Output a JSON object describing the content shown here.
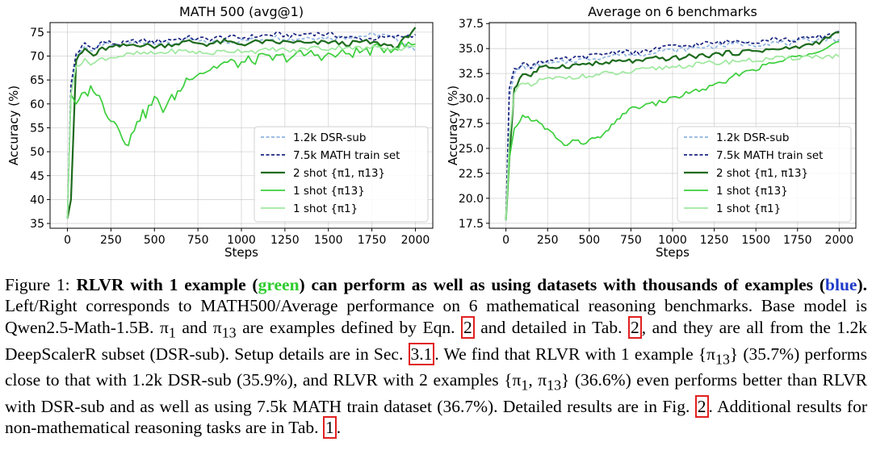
{
  "colors": {
    "dsr_sub": "#8fb3e0",
    "math_7k5": "#1a2480",
    "two_shot": "#1d6b1d",
    "one_shot_pi13": "#3ccf3c",
    "one_shot_pi1": "#9fe89f",
    "caption_green": "#2ecc2e",
    "caption_blue": "#1f3ac8",
    "ref_box": "#e02020"
  },
  "chart_data": [
    {
      "type": "line",
      "title": "MATH 500 (avg@1)",
      "xlabel": "Steps",
      "ylabel": "Accuracy (%)",
      "xlim": [
        -100,
        2100
      ],
      "ylim": [
        34,
        77
      ],
      "x_ticks": [
        0,
        250,
        500,
        750,
        1000,
        1250,
        1500,
        1750,
        2000
      ],
      "y_ticks": [
        35,
        40,
        45,
        50,
        55,
        60,
        65,
        70,
        75
      ],
      "grid": true,
      "legend_position": "lower-right",
      "series": [
        {
          "name": "1.2k DSR-sub",
          "style": "dashed",
          "x": [
            0,
            20,
            50,
            100,
            150,
            200,
            300,
            400,
            500,
            600,
            700,
            800,
            900,
            1000,
            1100,
            1200,
            1300,
            1400,
            1500,
            1600,
            1700,
            1800,
            1900,
            2000
          ],
          "y": [
            36,
            63,
            70,
            72,
            71,
            72.5,
            72,
            73,
            73,
            72.5,
            73.5,
            72.8,
            73,
            73.2,
            73.5,
            74,
            73.5,
            74,
            73.8,
            74,
            74.2,
            74.5,
            73.5,
            71
          ]
        },
        {
          "name": "7.5k MATH train set",
          "style": "dashed",
          "x": [
            0,
            20,
            50,
            100,
            150,
            200,
            300,
            400,
            500,
            600,
            700,
            800,
            900,
            1000,
            1100,
            1200,
            1300,
            1400,
            1500,
            1600,
            1700,
            1800,
            1900,
            2000
          ],
          "y": [
            36,
            64,
            70.5,
            72.5,
            71.5,
            73,
            72.5,
            73.2,
            73,
            73.5,
            73.8,
            73.5,
            74,
            73.8,
            74.2,
            74.5,
            74.2,
            74.8,
            74.5,
            74,
            73.5,
            73.8,
            74,
            74.5
          ]
        },
        {
          "name": "2 shot {π1, π13}",
          "style": "solid",
          "x": [
            0,
            20,
            50,
            100,
            150,
            200,
            300,
            400,
            500,
            600,
            700,
            800,
            900,
            1000,
            1100,
            1200,
            1300,
            1400,
            1500,
            1600,
            1700,
            1800,
            1900,
            2000
          ],
          "y": [
            36,
            40,
            69,
            71.5,
            70,
            71.5,
            72,
            72.5,
            72,
            72.5,
            73,
            72.5,
            73,
            72.5,
            73,
            72.8,
            73,
            72.5,
            73,
            72.5,
            73,
            72.5,
            72,
            76
          ]
        },
        {
          "name": "1 shot {π13}",
          "style": "solid",
          "x": [
            0,
            20,
            50,
            100,
            150,
            200,
            250,
            300,
            350,
            400,
            450,
            500,
            550,
            600,
            650,
            700,
            800,
            900,
            1000,
            1100,
            1200,
            1300,
            1400,
            1500,
            1600,
            1700,
            1800,
            1900,
            2000
          ],
          "y": [
            36,
            62,
            60,
            62,
            63.5,
            60,
            57,
            55,
            51,
            57,
            58,
            61,
            59,
            61,
            63,
            66,
            67,
            68.5,
            68.5,
            69.5,
            69.5,
            70,
            70.5,
            70,
            70.5,
            71,
            71.5,
            72,
            72.5
          ]
        },
        {
          "name": "1 shot {π1}",
          "style": "solid",
          "x": [
            0,
            20,
            50,
            100,
            150,
            200,
            300,
            400,
            500,
            600,
            700,
            800,
            900,
            1000,
            1100,
            1200,
            1300,
            1400,
            1500,
            1600,
            1700,
            1800,
            1900,
            2000
          ],
          "y": [
            36,
            62,
            68,
            69,
            68.5,
            69.5,
            70,
            70.5,
            70.5,
            71,
            71,
            70.5,
            71,
            71.2,
            71,
            71.5,
            71,
            71.8,
            71.5,
            72,
            71.5,
            72,
            71.5,
            72
          ]
        }
      ]
    },
    {
      "type": "line",
      "title": "Average on 6 benchmarks",
      "xlabel": "Steps",
      "ylabel": "Accuracy (%)",
      "xlim": [
        -100,
        2100
      ],
      "ylim": [
        17,
        37.6
      ],
      "x_ticks": [
        0,
        250,
        500,
        750,
        1000,
        1250,
        1500,
        1750,
        2000
      ],
      "y_ticks": [
        17.5,
        20.0,
        22.5,
        25.0,
        27.5,
        30.0,
        32.5,
        35.0,
        37.5
      ],
      "grid": true,
      "legend_position": "lower-right",
      "series": [
        {
          "name": "1.2k DSR-sub",
          "style": "dashed",
          "x": [
            0,
            20,
            50,
            100,
            150,
            200,
            300,
            400,
            500,
            600,
            700,
            800,
            900,
            1000,
            1100,
            1200,
            1300,
            1400,
            1500,
            1600,
            1700,
            1800,
            1900,
            2000
          ],
          "y": [
            17.8,
            30,
            32.5,
            33.3,
            33,
            33.5,
            33.5,
            33.8,
            34,
            34.2,
            34.5,
            34.3,
            34.8,
            34.8,
            35,
            35.2,
            35.3,
            35.5,
            35.4,
            35.6,
            35.5,
            35.8,
            36,
            35.9
          ]
        },
        {
          "name": "7.5k MATH train set",
          "style": "dashed",
          "x": [
            0,
            20,
            50,
            100,
            150,
            200,
            300,
            400,
            500,
            600,
            700,
            800,
            900,
            1000,
            1100,
            1200,
            1300,
            1400,
            1500,
            1600,
            1700,
            1800,
            1900,
            2000
          ],
          "y": [
            17.8,
            31,
            33,
            33.5,
            33.2,
            33.8,
            33.8,
            34,
            34.2,
            34.5,
            34.8,
            34.5,
            35,
            35.2,
            35.3,
            35.5,
            35.6,
            35.8,
            35.7,
            36,
            35.8,
            36,
            36.2,
            36.7
          ]
        },
        {
          "name": "2 shot {π1, π13}",
          "style": "solid",
          "x": [
            0,
            20,
            50,
            100,
            150,
            200,
            300,
            400,
            500,
            600,
            700,
            800,
            900,
            1000,
            1100,
            1200,
            1300,
            1400,
            1500,
            1600,
            1700,
            1800,
            1900,
            2000
          ],
          "y": [
            17.8,
            24,
            31,
            32.5,
            32.3,
            33,
            33.2,
            33.3,
            33.5,
            33.5,
            33.8,
            33.7,
            34,
            34,
            34.2,
            34.3,
            34.5,
            34.6,
            34.8,
            34.9,
            35,
            35.3,
            35.8,
            36.6
          ]
        },
        {
          "name": "1 shot {π13}",
          "style": "solid",
          "x": [
            0,
            20,
            50,
            100,
            150,
            200,
            250,
            300,
            350,
            400,
            450,
            500,
            550,
            600,
            650,
            700,
            800,
            900,
            1000,
            1100,
            1200,
            1300,
            1400,
            1500,
            1600,
            1700,
            1800,
            1900,
            2000
          ],
          "y": [
            17.8,
            24,
            27,
            28.2,
            28,
            27.5,
            26.8,
            26.2,
            25.2,
            25.8,
            25.5,
            25.8,
            26,
            26.5,
            27.5,
            28.5,
            29.2,
            29.5,
            30,
            30.6,
            31,
            31.5,
            32.5,
            33,
            33.5,
            34,
            34.5,
            35,
            35.7
          ]
        },
        {
          "name": "1 shot {π1}",
          "style": "solid",
          "x": [
            0,
            20,
            50,
            100,
            150,
            200,
            300,
            400,
            500,
            600,
            700,
            800,
            900,
            1000,
            1100,
            1200,
            1300,
            1400,
            1500,
            1600,
            1700,
            1800,
            1900,
            2000
          ],
          "y": [
            17.8,
            26,
            30.5,
            31.5,
            31.2,
            31.8,
            32,
            32.2,
            32.2,
            32.5,
            32.5,
            32.8,
            33,
            33.2,
            33.3,
            33.5,
            33.6,
            33.8,
            33.8,
            34,
            34,
            34.2,
            34.2,
            34.2
          ]
        }
      ]
    }
  ],
  "caption": {
    "label": "Figure 1: ",
    "bold_a": "RLVR with 1 example (",
    "bold_green": "green",
    "bold_b": ") can perform as well as using datasets with thousands of examples (",
    "bold_blue": "blue",
    "bold_c": ").",
    "t1": " Left/Right corresponds to MATH500/Average performance on 6 mathematical reasoning benchmarks. Base model is Qwen2.5-Math-1.5B. π",
    "sub1": "1",
    "t2": " and π",
    "sub2": "13",
    "t3": " are examples defined by Eqn. ",
    "ref_eqn": "2",
    "t4": " and detailed in Tab. ",
    "ref_tab": "2",
    "t5": ", and they are all from the 1.2k DeepScalerR subset (DSR-sub). Setup details are in Sec. ",
    "ref_sec": "3.1",
    "t6": ". We find that RLVR with 1 example {π",
    "sub3": "13",
    "t7": "} (35.7%) performs close to that with 1.2k DSR-sub (35.9%), and RLVR with 2 examples {π",
    "sub4": "1",
    "t8": ", π",
    "sub5": "13",
    "t9": "} (36.6%) even performs better than RLVR with DSR-sub and as well as using 7.5k MATH train dataset (36.7%). Detailed results are in Fig. ",
    "ref_fig": "2",
    "t10": ". Additional results for non-mathematical reasoning tasks are in Tab. ",
    "ref_tab2": "1",
    "t11": "."
  }
}
